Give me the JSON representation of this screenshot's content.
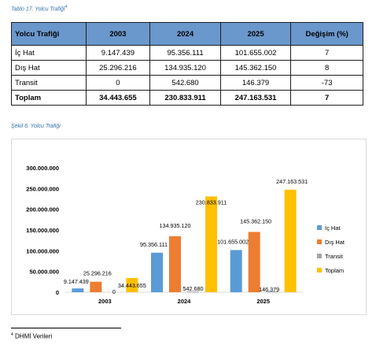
{
  "table_caption": "Tablo 17. Yolcu Trafiği",
  "table_caption_ref": "4",
  "chart_caption": "Şekil 6. Yolcu Trafiği",
  "table": {
    "headers": [
      "Yolcu Trafiği",
      "2003",
      "2024",
      "2025",
      "Değişim (%)"
    ],
    "rows": [
      [
        "İç Hat",
        "9.147.439",
        "95.356.111",
        "101.655.002",
        "7"
      ],
      [
        "Dış Hat",
        "25.296.216",
        "134.935.120",
        "145.362.150",
        "8"
      ],
      [
        "Transit",
        "0",
        "542.680",
        "146.379",
        "-73"
      ],
      [
        "Toplam",
        "34.443.655",
        "230.833.911",
        "247.163.531",
        "7"
      ]
    ]
  },
  "chart_data": {
    "type": "bar",
    "categories": [
      "2003",
      "2024",
      "2025"
    ],
    "series": [
      {
        "name": "İç Hat",
        "color": "#5b9bd5",
        "values": [
          9147439,
          95356111,
          101655002
        ],
        "labels": [
          "9.147.439",
          "95.356.111",
          "101.655.002"
        ]
      },
      {
        "name": "Dış Hat",
        "color": "#ed7d31",
        "values": [
          25296216,
          134935120,
          145362150
        ],
        "labels": [
          "25.296.216",
          "134.935.120",
          "145.362.150"
        ]
      },
      {
        "name": "Transit",
        "color": "#a5a5a5",
        "values": [
          0,
          542680,
          146379
        ],
        "labels": [
          "0",
          "542.680",
          "146.379"
        ]
      },
      {
        "name": "Toplam",
        "color": "#ffc000",
        "values": [
          34443655,
          230833911,
          247163531
        ],
        "labels": [
          "34.443.655",
          "230.833.911",
          "247.163.531"
        ]
      }
    ],
    "ylim": [
      0,
      300000000
    ],
    "yticks": [
      {
        "value": 0,
        "label": "0"
      },
      {
        "value": 50000000,
        "label": "50.000.000"
      },
      {
        "value": 100000000,
        "label": "100.000.000"
      },
      {
        "value": 150000000,
        "label": "150.000.000"
      },
      {
        "value": 200000000,
        "label": "200.000.000"
      },
      {
        "value": 250000000,
        "label": "250.000.000"
      },
      {
        "value": 300000000,
        "label": "300.000.000"
      }
    ],
    "legend": "right",
    "grid": false
  },
  "footnote_ref": "4",
  "footnote": "DHMİ Verileri"
}
